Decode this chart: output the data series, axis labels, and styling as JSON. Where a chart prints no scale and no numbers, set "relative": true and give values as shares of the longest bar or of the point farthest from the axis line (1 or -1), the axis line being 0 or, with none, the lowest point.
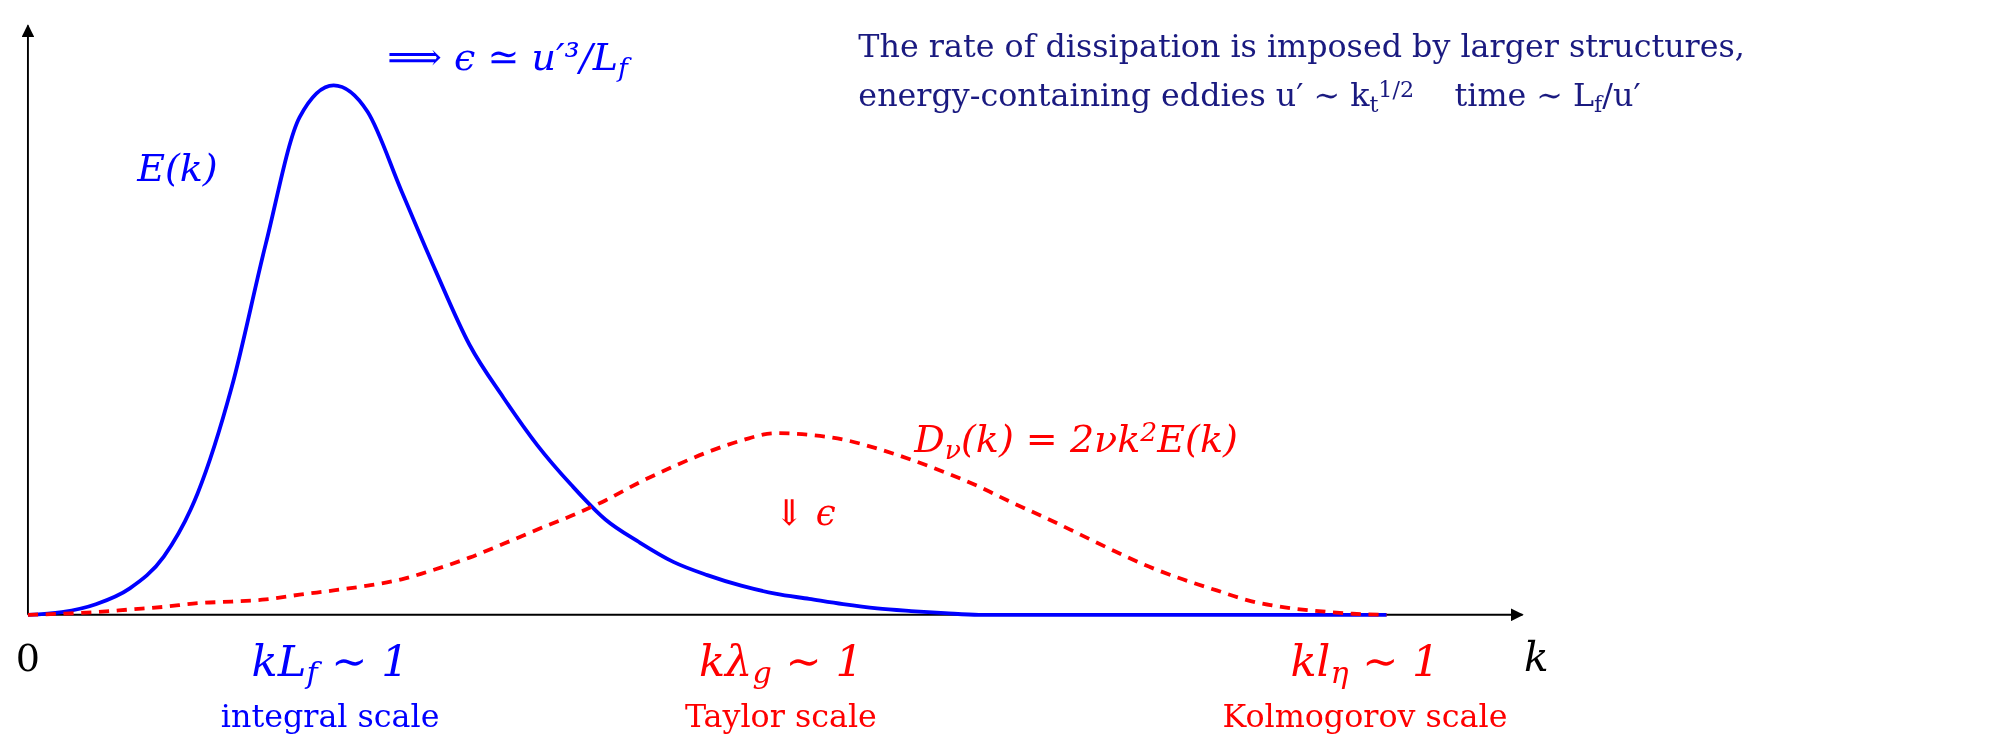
{
  "chart_data": {
    "type": "line",
    "relative": true,
    "xlabel": "k",
    "categories": [
      null,
      null,
      null,
      null,
      null,
      null,
      null,
      null,
      null,
      null,
      null,
      null,
      null,
      null,
      null,
      null,
      null,
      null,
      null,
      null,
      null,
      null,
      null,
      null,
      null,
      null,
      null,
      null,
      null,
      null,
      null,
      null,
      null,
      null,
      null,
      null,
      null,
      null,
      null,
      null,
      null,
      null,
      null,
      null,
      null
    ],
    "series": [
      {
        "name": "E(k)",
        "color": "#0000ff",
        "line_style": "solid",
        "values": [
          0,
          0.005,
          0.02,
          0.05,
          0.11,
          0.23,
          0.43,
          0.7,
          0.94,
          1,
          0.95,
          0.8,
          0.65,
          0.51,
          0.41,
          0.32,
          0.245,
          0.18,
          0.137,
          0.1,
          0.075,
          0.055,
          0.04,
          0.03,
          0.02,
          0.012,
          0.007,
          0.003,
          0,
          0,
          0,
          0,
          0,
          0,
          0,
          0,
          0,
          0,
          0,
          0,
          0,
          null,
          null,
          null,
          null
        ]
      },
      {
        "name": "D$_{ν}$(k) = 2νk$^{2}$E(k)",
        "color": "#ff0000",
        "line_style": "dashed",
        "values": [
          0,
          0.002,
          0.005,
          0.01,
          0.015,
          0.022,
          0.025,
          0.029,
          0.038,
          0.046,
          0.055,
          0.067,
          0.086,
          0.108,
          0.134,
          0.161,
          0.187,
          0.216,
          0.25,
          0.28,
          0.307,
          0.329,
          0.343,
          0.34,
          0.331,
          0.314,
          0.293,
          0.269,
          0.242,
          0.211,
          0.182,
          0.151,
          0.12,
          0.091,
          0.067,
          0.046,
          0.026,
          0.014,
          0.007,
          0.002,
          0,
          null,
          null,
          null,
          null
        ]
      }
    ],
    "annotations": [
      "⟹ ϵ ≃ u′³/L$_{f}$",
      "The rate of dissipation is imposed by larger structures,",
      "energy-containing eddies u′ ∼ k$_{t}$$^{1/2}$    time ∼ L$_{f}$/u′",
      "0",
      "kL$_{f}$ ∼ 1",
      "integral scale",
      "kλ$_{g}$ ∼ 1",
      "Taylor scale",
      "kl$_{η}$ ∼ 1",
      "Kolmogorov scale",
      "⇓ ϵ"
    ]
  }
}
